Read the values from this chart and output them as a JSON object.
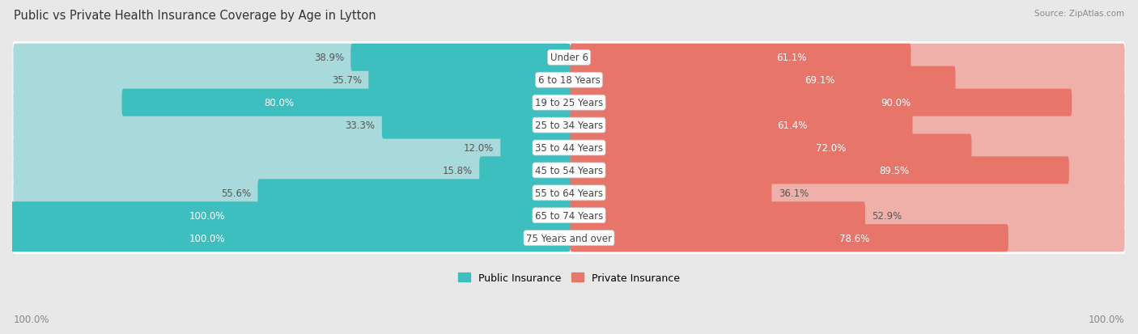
{
  "title": "Public vs Private Health Insurance Coverage by Age in Lytton",
  "source": "Source: ZipAtlas.com",
  "categories": [
    "Under 6",
    "6 to 18 Years",
    "19 to 25 Years",
    "25 to 34 Years",
    "35 to 44 Years",
    "45 to 54 Years",
    "55 to 64 Years",
    "65 to 74 Years",
    "75 Years and over"
  ],
  "public_values": [
    38.9,
    35.7,
    80.0,
    33.3,
    12.0,
    15.8,
    55.6,
    100.0,
    100.0
  ],
  "private_values": [
    61.1,
    69.1,
    90.0,
    61.4,
    72.0,
    89.5,
    36.1,
    52.9,
    78.6
  ],
  "public_color": "#3DBFBF",
  "private_color": "#E8756A",
  "public_color_light": "#A8DADB",
  "private_color_light": "#F0B0AA",
  "row_bg_even": "#F7F7F7",
  "row_bg_odd": "#EFEFEF",
  "outer_bg": "#E8E8E8",
  "title_fontsize": 10.5,
  "label_fontsize": 8.5,
  "value_fontsize": 8.5,
  "legend_fontsize": 9,
  "source_fontsize": 7.5
}
